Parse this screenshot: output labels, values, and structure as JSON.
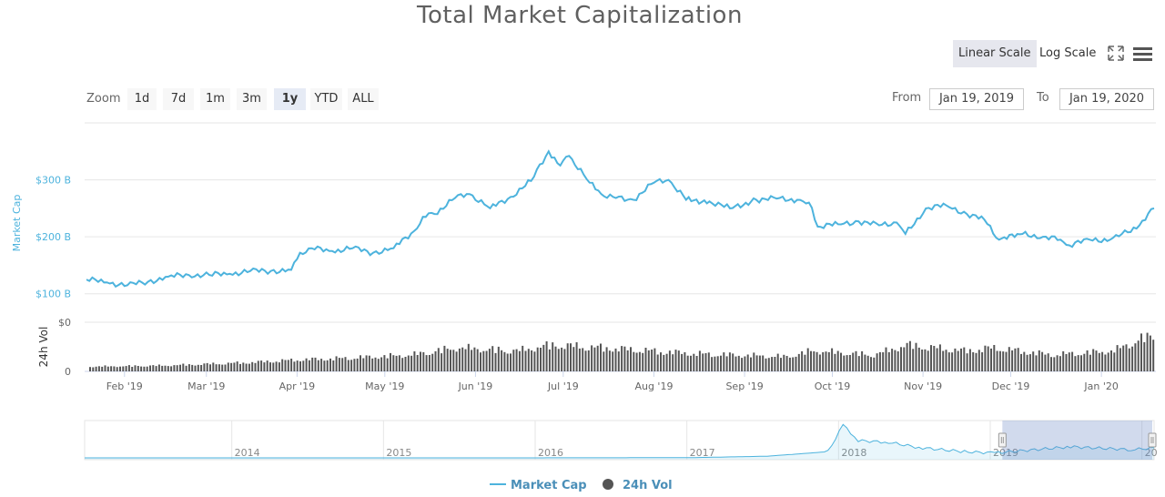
{
  "title": "Total Market Capitalization",
  "toolbar": {
    "linear_scale": "Linear Scale",
    "log_scale": "Log Scale",
    "fullscreen_icon": "fullscreen-icon",
    "menu_icon": "hamburger-menu-icon"
  },
  "range_selector": {
    "zoom_label": "Zoom",
    "buttons": [
      "1d",
      "7d",
      "1m",
      "3m",
      "1y",
      "YTD",
      "ALL"
    ],
    "selected": "1y",
    "from_label": "From",
    "from_value": "Jan 19, 2019",
    "to_label": "To",
    "to_value": "Jan 19, 2020"
  },
  "colors": {
    "market_cap": "#4db3dd",
    "volume": "#555555",
    "navigator_fill": "#c8d3eb"
  },
  "chart_data": [
    {
      "type": "line",
      "series": [
        {
          "name": "Market Cap",
          "x": [
            "2019-01-19",
            "2019-01-26",
            "2019-02-02",
            "2019-02-09",
            "2019-02-16",
            "2019-02-23",
            "2019-03-02",
            "2019-03-09",
            "2019-03-16",
            "2019-03-23",
            "2019-03-30",
            "2019-04-02",
            "2019-04-06",
            "2019-04-13",
            "2019-04-20",
            "2019-04-27",
            "2019-05-04",
            "2019-05-11",
            "2019-05-14",
            "2019-05-18",
            "2019-05-25",
            "2019-05-30",
            "2019-06-06",
            "2019-06-13",
            "2019-06-20",
            "2019-06-26",
            "2019-06-30",
            "2019-07-03",
            "2019-07-10",
            "2019-07-14",
            "2019-07-18",
            "2019-07-25",
            "2019-08-01",
            "2019-08-06",
            "2019-08-12",
            "2019-08-20",
            "2019-08-27",
            "2019-09-05",
            "2019-09-12",
            "2019-09-19",
            "2019-09-23",
            "2019-09-26",
            "2019-10-03",
            "2019-10-10",
            "2019-10-17",
            "2019-10-23",
            "2019-10-26",
            "2019-11-02",
            "2019-11-09",
            "2019-11-16",
            "2019-11-22",
            "2019-11-27",
            "2019-12-05",
            "2019-12-12",
            "2019-12-18",
            "2019-12-21",
            "2019-12-28",
            "2020-01-04",
            "2020-01-08",
            "2020-01-14",
            "2020-01-19"
          ],
          "values": [
            125,
            120,
            115,
            121,
            130,
            133,
            133,
            135,
            140,
            140,
            142,
            172,
            180,
            175,
            180,
            172,
            180,
            210,
            235,
            240,
            268,
            275,
            250,
            270,
            298,
            350,
            325,
            342,
            295,
            275,
            270,
            265,
            295,
            300,
            265,
            262,
            250,
            265,
            267,
            265,
            260,
            218,
            222,
            227,
            220,
            225,
            205,
            250,
            255,
            240,
            230,
            195,
            205,
            200,
            195,
            185,
            195,
            195,
            205,
            220,
            250
          ]
        }
      ],
      "ylabel": "Market Cap",
      "y_ticks": [
        "$100 B",
        "$200 B",
        "$300 B"
      ],
      "ylim": [
        50,
        400
      ],
      "x_ticks": [
        "Feb '19",
        "Mar '19",
        "Apr '19",
        "May '19",
        "Jun '19",
        "Jul '19",
        "Aug '19",
        "Sep '19",
        "Oct '19",
        "Nov '19",
        "Dec '19",
        "Jan '20"
      ]
    },
    {
      "type": "bar",
      "series": [
        {
          "name": "24h Vol",
          "x": [
            "2019-01-19",
            "2019-02-15",
            "2019-03-15",
            "2019-04-02",
            "2019-04-15",
            "2019-05-10",
            "2019-05-25",
            "2019-06-15",
            "2019-06-27",
            "2019-07-15",
            "2019-08-15",
            "2019-09-15",
            "2019-09-24",
            "2019-10-15",
            "2019-10-26",
            "2019-11-15",
            "2019-11-25",
            "2019-12-15",
            "2020-01-05",
            "2020-01-14",
            "2020-01-19"
          ],
          "values": [
            8,
            10,
            15,
            20,
            22,
            28,
            40,
            35,
            45,
            40,
            30,
            25,
            35,
            28,
            45,
            35,
            40,
            28,
            35,
            55,
            60
          ]
        }
      ],
      "ylabel": "24h Vol",
      "y_ticks": [
        "0",
        "$0"
      ]
    },
    {
      "type": "area",
      "series": [
        {
          "name": "Navigator",
          "x": [
            "2013",
            "2014",
            "2015",
            "2016",
            "2017",
            "2017.5",
            "2017.9",
            "2018.0",
            "2018.1",
            "2018.3",
            "2018.5",
            "2018.8",
            "2019.0",
            "2019.5",
            "2019.9",
            "2020.05"
          ],
          "values": [
            1,
            1,
            1,
            1,
            5,
            40,
            150,
            800,
            420,
            380,
            250,
            150,
            120,
            270,
            200,
            240
          ]
        }
      ],
      "x_ticks": [
        "2014",
        "2015",
        "2016",
        "2017",
        "2018",
        "2019",
        "20"
      ],
      "selected_range": [
        "2019-01-19",
        "2020-01-19"
      ]
    }
  ],
  "legend": [
    {
      "name": "Market Cap",
      "symbol": "line"
    },
    {
      "name": "24h Vol",
      "symbol": "circle"
    }
  ]
}
